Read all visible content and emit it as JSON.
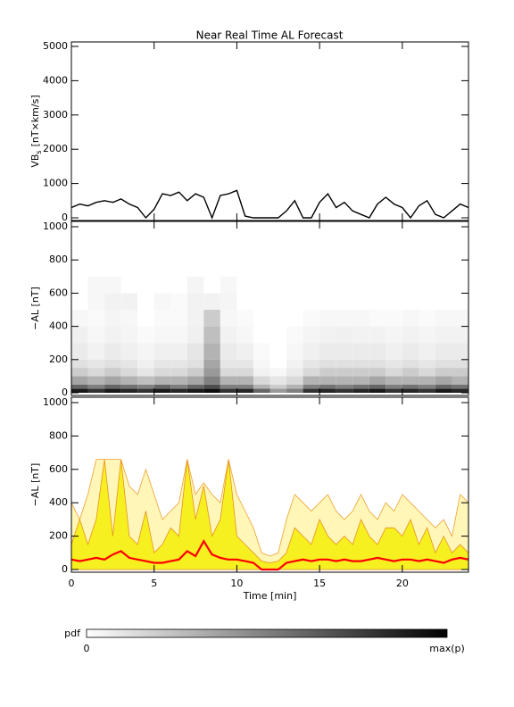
{
  "chart_data": [
    {
      "type": "line",
      "title": "Near Real Time AL Forecast",
      "ylabel": {
        "main": "VB",
        "sub": "s",
        "unit": "[nT×km/s]"
      },
      "xlim": [
        0,
        24
      ],
      "ylim": [
        0,
        5000
      ],
      "yticks": [
        0,
        1000,
        2000,
        3000,
        4000,
        5000
      ],
      "x": [
        0,
        0.5,
        1,
        1.5,
        2,
        2.5,
        3,
        3.5,
        4,
        4.5,
        5,
        5.5,
        6,
        6.5,
        7,
        7.5,
        8,
        8.5,
        9,
        9.5,
        10,
        10.5,
        11,
        11.5,
        12,
        12.5,
        13,
        13.5,
        14,
        14.5,
        15,
        15.5,
        16,
        16.5,
        17,
        17.5,
        18,
        18.5,
        19,
        19.5,
        20,
        20.5,
        21,
        21.5,
        22,
        22.5,
        23,
        23.5,
        24
      ],
      "color": "#000000",
      "values": [
        300,
        400,
        350,
        450,
        500,
        450,
        550,
        400,
        300,
        0,
        250,
        700,
        650,
        750,
        500,
        700,
        600,
        0,
        650,
        700,
        800,
        50,
        0,
        0,
        0,
        0,
        200,
        500,
        0,
        0,
        450,
        700,
        300,
        450,
        200,
        100,
        0,
        400,
        600,
        400,
        300,
        0,
        350,
        500,
        100,
        0,
        200,
        400,
        300
      ]
    },
    {
      "type": "heatmap",
      "ylabel": "−AL [nT]",
      "xlim": [
        0,
        24
      ],
      "ylim": [
        0,
        1000
      ],
      "yticks": [
        0,
        200,
        400,
        600,
        800,
        1000
      ],
      "xbins": [
        0,
        1,
        2,
        3,
        4,
        5,
        6,
        7,
        8,
        9,
        10,
        11,
        12,
        13,
        14,
        15,
        16,
        17,
        18,
        19,
        20,
        21,
        22,
        23,
        24
      ],
      "ybins": [
        0,
        25,
        50,
        100,
        150,
        200,
        300,
        400,
        500,
        600,
        700
      ],
      "values": [
        [
          0.9,
          0.8,
          0.9,
          0.85,
          0.8,
          0.9,
          0.85,
          0.9,
          0.95,
          0.8,
          0.85,
          0.6,
          0.4,
          0.5,
          0.8,
          0.85,
          0.8,
          0.85,
          0.9,
          0.8,
          0.85,
          0.8,
          0.9,
          0.85
        ],
        [
          0.6,
          0.5,
          0.6,
          0.55,
          0.5,
          0.6,
          0.5,
          0.6,
          0.7,
          0.5,
          0.5,
          0.3,
          0.2,
          0.3,
          0.5,
          0.55,
          0.5,
          0.55,
          0.6,
          0.5,
          0.55,
          0.5,
          0.6,
          0.55
        ],
        [
          0.35,
          0.3,
          0.35,
          0.3,
          0.25,
          0.3,
          0.3,
          0.35,
          0.5,
          0.3,
          0.3,
          0.15,
          0.1,
          0.15,
          0.3,
          0.3,
          0.3,
          0.3,
          0.35,
          0.3,
          0.3,
          0.3,
          0.35,
          0.3
        ],
        [
          0.2,
          0.15,
          0.2,
          0.15,
          0.1,
          0.15,
          0.15,
          0.2,
          0.4,
          0.15,
          0.15,
          0.05,
          0.03,
          0.08,
          0.15,
          0.2,
          0.2,
          0.2,
          0.2,
          0.15,
          0.2,
          0.15,
          0.2,
          0.2
        ],
        [
          0.12,
          0.1,
          0.12,
          0.1,
          0.06,
          0.1,
          0.1,
          0.12,
          0.35,
          0.1,
          0.1,
          0.03,
          0,
          0.05,
          0.1,
          0.12,
          0.12,
          0.12,
          0.12,
          0.1,
          0.12,
          0.1,
          0.12,
          0.12
        ],
        [
          0.08,
          0.05,
          0.08,
          0.06,
          0.04,
          0.06,
          0.06,
          0.1,
          0.3,
          0.08,
          0.06,
          0.02,
          0,
          0.03,
          0.06,
          0.08,
          0.08,
          0.08,
          0.08,
          0.06,
          0.08,
          0.06,
          0.08,
          0.08
        ],
        [
          0.06,
          0.03,
          0.05,
          0.04,
          0.02,
          0.03,
          0.03,
          0.06,
          0.25,
          0.05,
          0.03,
          0,
          0,
          0.02,
          0.04,
          0.05,
          0.06,
          0.05,
          0.05,
          0.04,
          0.05,
          0.04,
          0.05,
          0.05
        ],
        [
          0.03,
          0.02,
          0.04,
          0.03,
          0,
          0.02,
          0.02,
          0.05,
          0.2,
          0.03,
          0.02,
          0,
          0,
          0,
          0.02,
          0.03,
          0.03,
          0.03,
          0.02,
          0.02,
          0.03,
          0.02,
          0.03,
          0.03
        ],
        [
          0,
          0.03,
          0.05,
          0.05,
          0,
          0.03,
          0.02,
          0.05,
          0.05,
          0.04,
          0,
          0,
          0,
          0,
          0,
          0,
          0,
          0,
          0,
          0,
          0,
          0,
          0,
          0
        ],
        [
          0,
          0.03,
          0.03,
          0,
          0,
          0,
          0,
          0.04,
          0,
          0.03,
          0,
          0,
          0,
          0,
          0,
          0,
          0,
          0,
          0,
          0,
          0,
          0,
          0,
          0
        ]
      ]
    },
    {
      "type": "area",
      "ylabel": "−AL [nT]",
      "xlabel": "Time [min]",
      "xlim": [
        0,
        24
      ],
      "ylim": [
        0,
        1000
      ],
      "yticks": [
        0,
        200,
        400,
        600,
        800,
        1000
      ],
      "xticks": [
        0,
        5,
        10,
        15,
        20
      ],
      "x": [
        0,
        0.5,
        1,
        1.5,
        2,
        2.5,
        3,
        3.5,
        4,
        4.5,
        5,
        5.5,
        6,
        6.5,
        7,
        7.5,
        8,
        8.5,
        9,
        9.5,
        10,
        10.5,
        11,
        11.5,
        12,
        12.5,
        13,
        13.5,
        14,
        14.5,
        15,
        15.5,
        16,
        16.5,
        17,
        17.5,
        18,
        18.5,
        19,
        19.5,
        20,
        20.5,
        21,
        21.5,
        22,
        22.5,
        23,
        23.5,
        24
      ],
      "series": [
        {
          "color": "#fff6b8",
          "line_color": "#f0a030",
          "fill": true,
          "values": [
            400,
            300,
            450,
            660,
            660,
            660,
            660,
            500,
            450,
            600,
            450,
            300,
            350,
            400,
            660,
            450,
            520,
            450,
            400,
            660,
            450,
            350,
            250,
            100,
            80,
            100,
            300,
            450,
            400,
            350,
            400,
            450,
            350,
            300,
            350,
            450,
            350,
            300,
            400,
            350,
            450,
            400,
            350,
            300,
            250,
            300,
            200,
            450,
            400
          ]
        },
        {
          "color": "#f6f020",
          "line_color": "#e89020",
          "fill": true,
          "values": [
            150,
            300,
            150,
            300,
            660,
            200,
            660,
            200,
            150,
            350,
            100,
            150,
            250,
            200,
            660,
            300,
            500,
            200,
            300,
            660,
            200,
            150,
            100,
            50,
            40,
            50,
            100,
            250,
            200,
            150,
            300,
            200,
            150,
            200,
            150,
            300,
            200,
            150,
            250,
            250,
            200,
            300,
            150,
            250,
            100,
            200,
            100,
            150,
            100
          ]
        },
        {
          "color": "#ff0000",
          "fill": false,
          "values": [
            60,
            50,
            60,
            70,
            60,
            90,
            110,
            70,
            60,
            50,
            40,
            40,
            50,
            60,
            110,
            80,
            170,
            90,
            70,
            60,
            60,
            50,
            40,
            0,
            0,
            0,
            40,
            50,
            60,
            50,
            60,
            60,
            50,
            60,
            50,
            50,
            60,
            70,
            60,
            50,
            60,
            60,
            50,
            60,
            50,
            40,
            60,
            70,
            60
          ]
        }
      ]
    }
  ],
  "colorbar": {
    "label": "pdf",
    "min_label": "0",
    "max_label": "max(p)"
  }
}
